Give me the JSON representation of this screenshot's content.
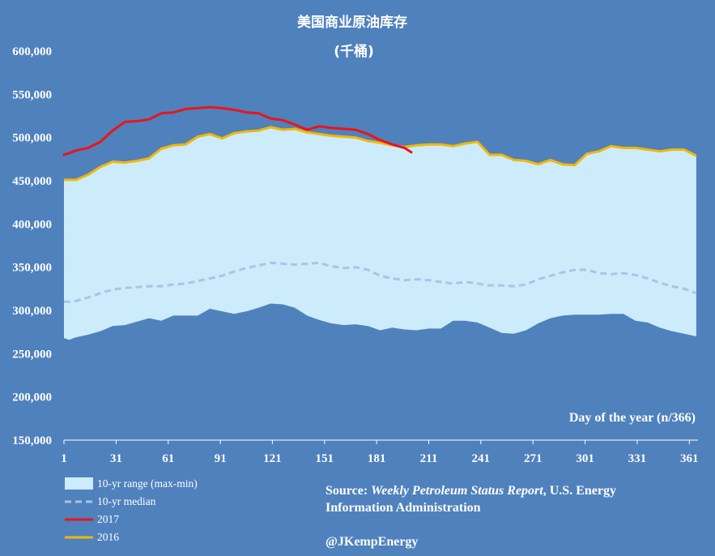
{
  "chart_data": {
    "type": "area",
    "title": "美国商业原油库存",
    "subtitle": "(千桶)",
    "xlabel": "Day of the year (n/366)",
    "ylabel": "",
    "xlim": [
      1,
      366
    ],
    "ylim": [
      150000,
      600000
    ],
    "yticks": [
      150000,
      200000,
      250000,
      300000,
      350000,
      400000,
      450000,
      500000,
      550000,
      600000
    ],
    "ytick_labels": [
      "150,000",
      "200,000",
      "250,000",
      "300,000",
      "350,000",
      "400,000",
      "450,000",
      "500,000",
      "550,000",
      "600,000"
    ],
    "xticks": [
      1,
      31,
      61,
      91,
      121,
      151,
      181,
      211,
      241,
      271,
      301,
      331,
      361
    ],
    "xtick_labels": [
      "1",
      "31",
      "61",
      "91",
      "121",
      "151",
      "181",
      "211",
      "241",
      "271",
      "301",
      "331",
      "361"
    ],
    "grid": false,
    "legend_position": "bottom-left",
    "x": [
      1,
      4,
      8,
      15,
      22,
      29,
      36,
      43,
      50,
      57,
      64,
      71,
      78,
      85,
      92,
      99,
      106,
      113,
      120,
      127,
      134,
      141,
      148,
      155,
      162,
      169,
      176,
      183,
      190,
      197,
      204,
      211,
      218,
      225,
      232,
      239,
      246,
      253,
      260,
      267,
      274,
      281,
      288,
      295,
      302,
      309,
      316,
      323,
      330,
      337,
      344,
      351,
      358,
      365
    ],
    "series": [
      {
        "name": "10-yr range (max-min)",
        "kind": "band",
        "color": "#ccecfb",
        "upper": [
          451000,
          451000,
          451000,
          457000,
          466000,
          472000,
          471000,
          473000,
          476000,
          487000,
          491000,
          492000,
          501000,
          504000,
          499000,
          505000,
          507000,
          508000,
          512000,
          509000,
          510000,
          506000,
          504000,
          502000,
          501000,
          500000,
          496000,
          494000,
          491000,
          489000,
          491000,
          492000,
          492000,
          490000,
          493000,
          495000,
          480000,
          480000,
          474000,
          473000,
          469000,
          474000,
          469000,
          468000,
          481000,
          484000,
          490000,
          488000,
          488000,
          486000,
          484000,
          486000,
          486000,
          479000
        ],
        "lower": [
          268000,
          266000,
          269000,
          272000,
          276000,
          282000,
          283000,
          287000,
          291000,
          288000,
          294000,
          294000,
          294000,
          302000,
          299000,
          296000,
          299000,
          303000,
          308000,
          307000,
          303000,
          294000,
          289000,
          285000,
          283000,
          284000,
          282000,
          277000,
          280000,
          278000,
          277000,
          279000,
          279000,
          288000,
          288000,
          286000,
          280000,
          274000,
          273000,
          277000,
          285000,
          291000,
          294000,
          295000,
          295000,
          295000,
          296000,
          296000,
          288000,
          286000,
          280000,
          276000,
          273000,
          270000
        ]
      },
      {
        "name": "10-yr median",
        "kind": "dashed-line",
        "color": "#a9c4e4",
        "values": [
          310000,
          310000,
          311000,
          315000,
          320000,
          324000,
          326000,
          327000,
          328000,
          328000,
          330000,
          331000,
          334000,
          337000,
          340000,
          345000,
          349000,
          352000,
          355000,
          354000,
          353000,
          354000,
          355000,
          351000,
          349000,
          350000,
          347000,
          340000,
          337000,
          335000,
          336000,
          335000,
          333000,
          331000,
          333000,
          331000,
          329000,
          329000,
          328000,
          330000,
          336000,
          340000,
          344000,
          347000,
          347000,
          343000,
          342000,
          343000,
          341000,
          337000,
          332000,
          328000,
          325000,
          320000
        ]
      },
      {
        "name": "2017",
        "kind": "line",
        "color": "#e8151b",
        "x": [
          1,
          4,
          8,
          15,
          22,
          29,
          36,
          43,
          50,
          57,
          64,
          71,
          78,
          85,
          92,
          99,
          106,
          113,
          120,
          127,
          134,
          141,
          148,
          155,
          162,
          169,
          176,
          183,
          190,
          197,
          201
        ],
        "values": [
          480000,
          482000,
          485000,
          488000,
          495000,
          508000,
          518000,
          519000,
          521000,
          528000,
          529000,
          533000,
          534000,
          535000,
          534000,
          532000,
          529000,
          528000,
          522000,
          520000,
          515000,
          509000,
          513000,
          511000,
          510000,
          509000,
          504000,
          497000,
          492000,
          488000,
          483000
        ]
      },
      {
        "name": "2016",
        "kind": "line",
        "color": "#f2b705",
        "values": [
          451000,
          451000,
          451000,
          457000,
          466000,
          472000,
          471000,
          473000,
          476000,
          487000,
          491000,
          492000,
          501000,
          504000,
          499000,
          505000,
          507000,
          508000,
          512000,
          509000,
          510000,
          506000,
          504000,
          502000,
          501000,
          500000,
          496000,
          494000,
          491000,
          489000,
          491000,
          492000,
          492000,
          490000,
          493000,
          495000,
          480000,
          480000,
          474000,
          473000,
          469000,
          474000,
          469000,
          468000,
          481000,
          484000,
          490000,
          488000,
          488000,
          486000,
          484000,
          486000,
          486000,
          479000
        ]
      }
    ]
  },
  "source": {
    "prefix": "Source: ",
    "report": "Weekly Petroleum Status Report",
    "line1_suffix": ", U.S. Energy",
    "line2": "Information Administration"
  },
  "handle": "@JKempEnergy",
  "colors": {
    "background": "#4f81bd",
    "range_fill": "#ccecfb",
    "median": "#a9c4e4",
    "y2017": "#e8151b",
    "y2016": "#f2b705"
  }
}
